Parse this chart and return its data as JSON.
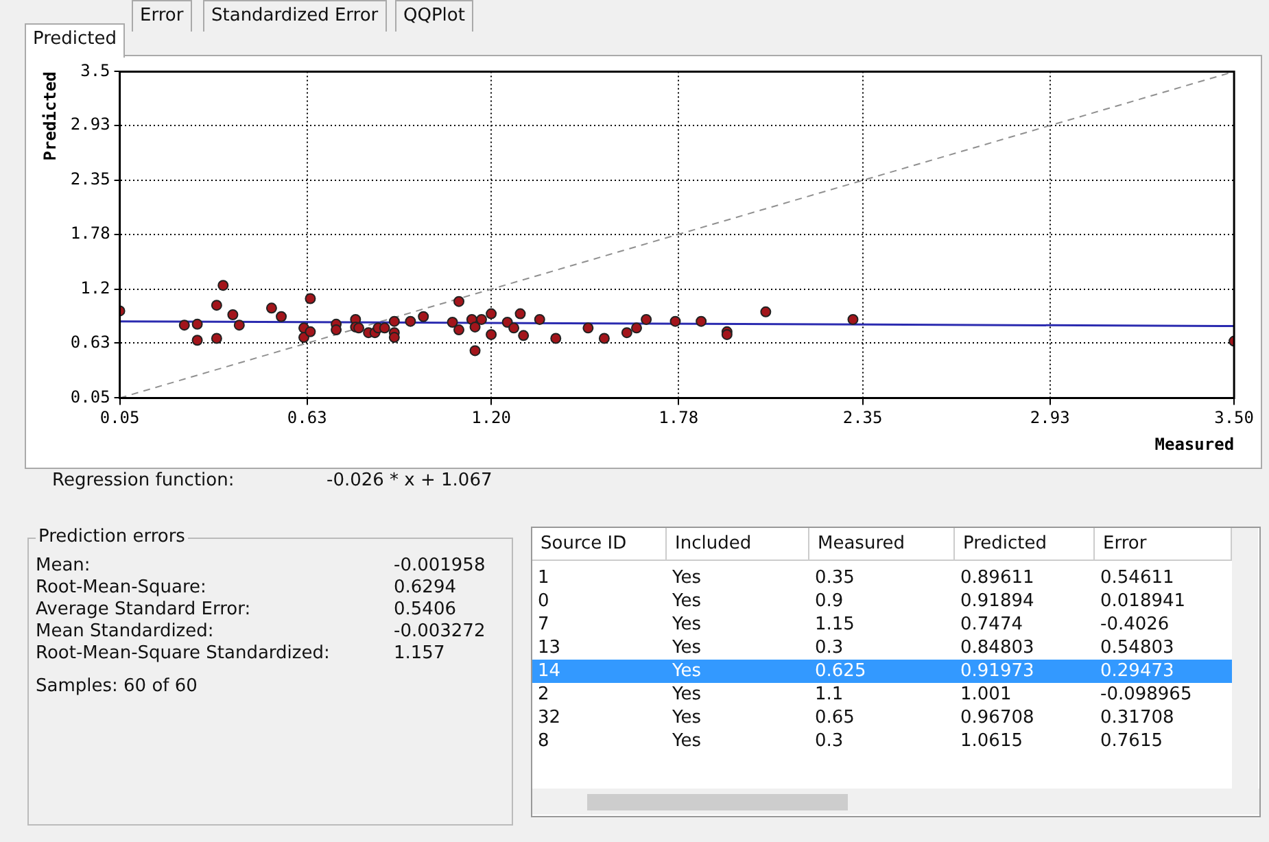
{
  "chart_data": {
    "type": "scatter",
    "xlabel": "Measured",
    "ylabel": "Predicted",
    "xlim": [
      0.05,
      3.5
    ],
    "ylim": [
      0.05,
      3.5
    ],
    "xticks": [
      0.05,
      0.63,
      {
        "value": 1.2,
        "label": "1.20"
      },
      1.78,
      2.35,
      2.93,
      {
        "value": 3.5,
        "label": "3.50"
      }
    ],
    "yticks": [
      0.05,
      0.63,
      1.2,
      1.78,
      2.35,
      2.93,
      3.5
    ],
    "grid": true,
    "legend": false,
    "series": [
      {
        "marker": "circle",
        "color": "#a3151b",
        "x": [
          0.05,
          0.25,
          0.29,
          0.29,
          0.35,
          0.35,
          0.37,
          0.4,
          0.42,
          0.52,
          0.55,
          0.62,
          0.62,
          0.64,
          0.64,
          0.72,
          0.72,
          0.78,
          0.78,
          0.79,
          0.82,
          0.84,
          0.85,
          0.87,
          0.9,
          0.9,
          0.9,
          0.95,
          0.99,
          1.08,
          1.1,
          1.1,
          1.14,
          1.15,
          1.15,
          1.17,
          1.2,
          1.2,
          1.25,
          1.27,
          1.29,
          1.3,
          1.35,
          1.4,
          1.5,
          1.55,
          1.62,
          1.65,
          1.68,
          1.77,
          1.85,
          1.93,
          1.93,
          2.05,
          2.32,
          3.5
        ],
        "values": [
          0.97,
          0.82,
          0.83,
          0.66,
          1.03,
          0.68,
          1.24,
          0.93,
          0.82,
          1.0,
          0.91,
          0.79,
          0.69,
          1.1,
          0.75,
          0.83,
          0.77,
          0.88,
          0.8,
          0.79,
          0.74,
          0.74,
          0.79,
          0.79,
          0.86,
          0.74,
          0.69,
          0.86,
          0.91,
          0.85,
          1.07,
          0.77,
          0.88,
          0.8,
          0.55,
          0.88,
          0.94,
          0.72,
          0.85,
          0.79,
          0.94,
          0.71,
          0.88,
          0.68,
          0.79,
          0.68,
          0.74,
          0.79,
          0.88,
          0.86,
          0.86,
          0.75,
          0.72,
          0.96,
          0.88,
          0.65
        ]
      },
      {
        "type": "line",
        "marker": "none",
        "color": "#2b2bb0",
        "line_style": "solid",
        "x": [
          0.05,
          3.5
        ],
        "values": [
          0.86,
          0.81
        ]
      },
      {
        "type": "line",
        "marker": "none",
        "color": "#909090",
        "line_style": "dashed",
        "x": [
          0.05,
          3.5
        ],
        "values": [
          0.05,
          3.5
        ]
      }
    ],
    "annotations": [
      "Predicted",
      "Error",
      "Standardized Error",
      "QQPlot",
      "Regression function:",
      "-0.026 * x + 1.067",
      "Prediction errors",
      "Mean:",
      "-0.001958",
      "Root-Mean-Square:",
      "0.6294",
      "Average Standard Error:",
      "0.5406",
      "Mean Standardized:",
      "-0.003272",
      "Root-Mean-Square Standardized:",
      "1.157",
      "Samples: 60 of 60",
      "Source ID",
      "Included",
      "Measured",
      "Predicted",
      "Error",
      "1",
      "Yes",
      "0.35",
      "0.89611",
      "0.54611",
      "0",
      "Yes",
      "0.9",
      "0.91894",
      "0.018941",
      "7",
      "Yes",
      "1.15",
      "0.7474",
      "-0.4026",
      "13",
      "Yes",
      "0.3",
      "0.84803",
      "0.54803",
      "14",
      "Yes",
      "0.625",
      "0.91973",
      "0.29473",
      "2",
      "Yes",
      "1.1",
      "1.001",
      "-0.098965",
      "32",
      "Yes",
      "0.65",
      "0.96708",
      "0.31708",
      "8",
      "Yes",
      "0.3",
      "1.0615",
      "0.7615"
    ]
  }
}
